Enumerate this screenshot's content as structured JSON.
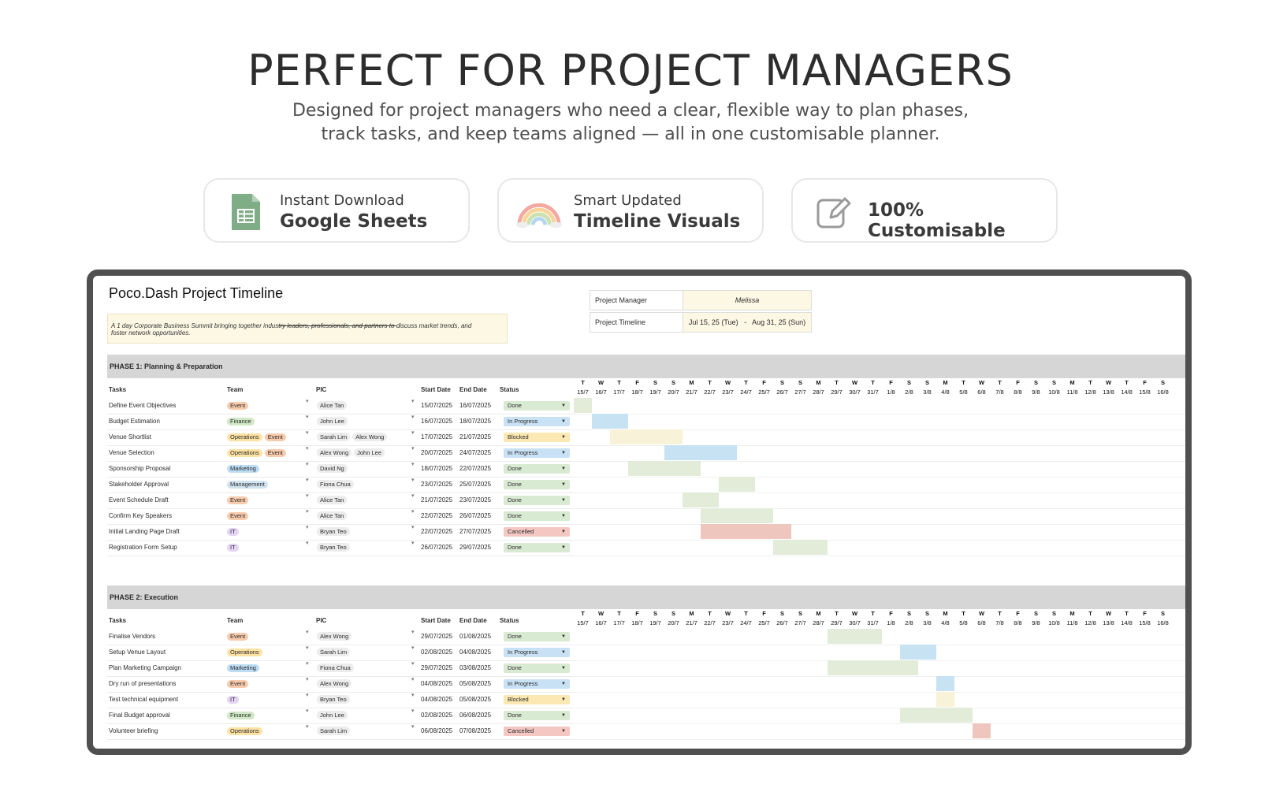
{
  "hero": {
    "title": "PERFECT FOR PROJECT MANAGERS",
    "subtitle_line1": "Designed for project managers who need a clear, flexible way to plan phases,",
    "subtitle_line2": "track tasks, and keep teams aligned — all in one customisable planner."
  },
  "features": [
    {
      "icon": "google-sheets-icon",
      "small": "Instant Download",
      "big": "Google Sheets"
    },
    {
      "icon": "rainbow-icon",
      "small": "Smart Updated",
      "big": "Timeline Visuals"
    },
    {
      "icon": "edit-icon",
      "big": "100% Customisable"
    }
  ],
  "sheet": {
    "title": "Poco.Dash Project Timeline",
    "note_a": "A 1 day Corporate Business Summit bringing together indus",
    "note_b": "try leaders, professionals, and partners to ",
    "note_c": "discuss market trends, and",
    "note_d": "foster network opportunities.",
    "manager_label": "Project Manager",
    "manager_value": "Melissa",
    "timeline_label": "Project Timeline",
    "timeline_value": "Jul 15, 25 (Tue)   -   Aug 31, 25 (Sun)",
    "columns": {
      "tasks": "Tasks",
      "team": "Team",
      "pic": "PIC",
      "start": "Start Date",
      "end": "End Date",
      "status": "Status"
    },
    "day_letters": [
      "T",
      "W",
      "T",
      "F",
      "S",
      "S",
      "M",
      "T",
      "W",
      "T",
      "F",
      "S",
      "S",
      "M",
      "T",
      "W",
      "T",
      "F",
      "S",
      "S",
      "M",
      "T",
      "W",
      "T",
      "F",
      "S",
      "S",
      "M",
      "T",
      "W",
      "T",
      "F",
      "S"
    ],
    "day_dates": [
      "15/7",
      "16/7",
      "17/7",
      "18/7",
      "19/7",
      "20/7",
      "21/7",
      "22/7",
      "23/7",
      "24/7",
      "25/7",
      "26/7",
      "27/7",
      "28/7",
      "29/7",
      "30/7",
      "31/7",
      "1/8",
      "2/8",
      "3/8",
      "4/8",
      "5/8",
      "6/8",
      "7/8",
      "8/8",
      "9/8",
      "10/8",
      "11/8",
      "12/8",
      "13/8",
      "14/8",
      "15/8",
      "16/8"
    ],
    "status_colors": {
      "Done": "#d9ead3",
      "In Progress": "#c9e1f5",
      "Blocked": "#fce8b2",
      "Cancelled": "#f4c7c3"
    },
    "team_colors": {
      "Event": "#f9cbad",
      "Finance": "#d0e8c6",
      "Operations": "#fde2a3",
      "Marketing": "#bcdcf4",
      "Management": "#cfe3f0",
      "IT": "#e4d3f3"
    },
    "bar_colors": {
      "Done": "#e2ecd8",
      "In Progress": "#c7e2f3",
      "Blocked": "#f8f2d8",
      "Cancelled": "#efc6bd"
    },
    "phases": [
      {
        "name": "PHASE 1: Planning & Preparation",
        "tasks": [
          {
            "task": "Define Event Objectives",
            "team": [
              "Event"
            ],
            "pic": [
              "Alice Tan"
            ],
            "start": "15/07/2025",
            "end": "16/07/2025",
            "status": "Done"
          },
          {
            "task": "Budget Estimation",
            "team": [
              "Finance"
            ],
            "pic": [
              "John Lee"
            ],
            "start": "16/07/2025",
            "end": "18/07/2025",
            "status": "In Progress"
          },
          {
            "task": "Venue Shortlist",
            "team": [
              "Operations",
              "Event"
            ],
            "pic": [
              "Sarah Lim",
              "Alex Wong"
            ],
            "start": "17/07/2025",
            "end": "21/07/2025",
            "status": "Blocked"
          },
          {
            "task": "Venue Selection",
            "team": [
              "Operations",
              "Event"
            ],
            "pic": [
              "Alex Wong",
              "John Lee"
            ],
            "start": "20/07/2025",
            "end": "24/07/2025",
            "status": "In Progress"
          },
          {
            "task": "Sponsorship Proposal",
            "team": [
              "Marketing"
            ],
            "pic": [
              "David Ng"
            ],
            "start": "18/07/2025",
            "end": "22/07/2025",
            "status": "Done"
          },
          {
            "task": "Stakeholder Approval",
            "team": [
              "Management"
            ],
            "pic": [
              "Fiona Chua"
            ],
            "start": "23/07/2025",
            "end": "25/07/2025",
            "status": "Done"
          },
          {
            "task": "Event Schedule Draft",
            "team": [
              "Event"
            ],
            "pic": [
              "Alice Tan"
            ],
            "start": "21/07/2025",
            "end": "23/07/2025",
            "status": "Done"
          },
          {
            "task": "Confirm Key Speakers",
            "team": [
              "Event"
            ],
            "pic": [
              "Alice Tan"
            ],
            "start": "22/07/2025",
            "end": "26/07/2025",
            "status": "Done"
          },
          {
            "task": "Initial Landing Page Draft",
            "team": [
              "IT"
            ],
            "pic": [
              "Bryan Teo"
            ],
            "start": "22/07/2025",
            "end": "27/07/2025",
            "status": "Cancelled"
          },
          {
            "task": "Registration Form Setup",
            "team": [
              "IT"
            ],
            "pic": [
              "Bryan Teo"
            ],
            "start": "26/07/2025",
            "end": "29/07/2025",
            "status": "Done"
          }
        ]
      },
      {
        "name": "PHASE 2: Execution",
        "tasks": [
          {
            "task": "Finalise Vendors",
            "team": [
              "Event"
            ],
            "pic": [
              "Alex Wong"
            ],
            "start": "29/07/2025",
            "end": "01/08/2025",
            "status": "Done"
          },
          {
            "task": "Setup Venue Layout",
            "team": [
              "Operations"
            ],
            "pic": [
              "Sarah Lim"
            ],
            "start": "02/08/2025",
            "end": "04/08/2025",
            "status": "In Progress"
          },
          {
            "task": "Plan Marketing Campaign",
            "team": [
              "Marketing"
            ],
            "pic": [
              "Fiona Chua"
            ],
            "start": "29/07/2025",
            "end": "03/08/2025",
            "status": "Done"
          },
          {
            "task": "Dry run of presentations",
            "team": [
              "Event"
            ],
            "pic": [
              "Alex Wong"
            ],
            "start": "04/08/2025",
            "end": "05/08/2025",
            "status": "In Progress"
          },
          {
            "task": "Test technical equipment",
            "team": [
              "IT"
            ],
            "pic": [
              "Bryan Teo"
            ],
            "start": "04/08/2025",
            "end": "05/08/2025",
            "status": "Blocked"
          },
          {
            "task": "Final Budget approval",
            "team": [
              "Finance"
            ],
            "pic": [
              "John Lee"
            ],
            "start": "02/08/2025",
            "end": "06/08/2025",
            "status": "Done"
          },
          {
            "task": "Volunteer briefing",
            "team": [
              "Operations"
            ],
            "pic": [
              "Sarah Lim"
            ],
            "start": "06/08/2025",
            "end": "07/08/2025",
            "status": "Cancelled"
          }
        ]
      }
    ]
  }
}
